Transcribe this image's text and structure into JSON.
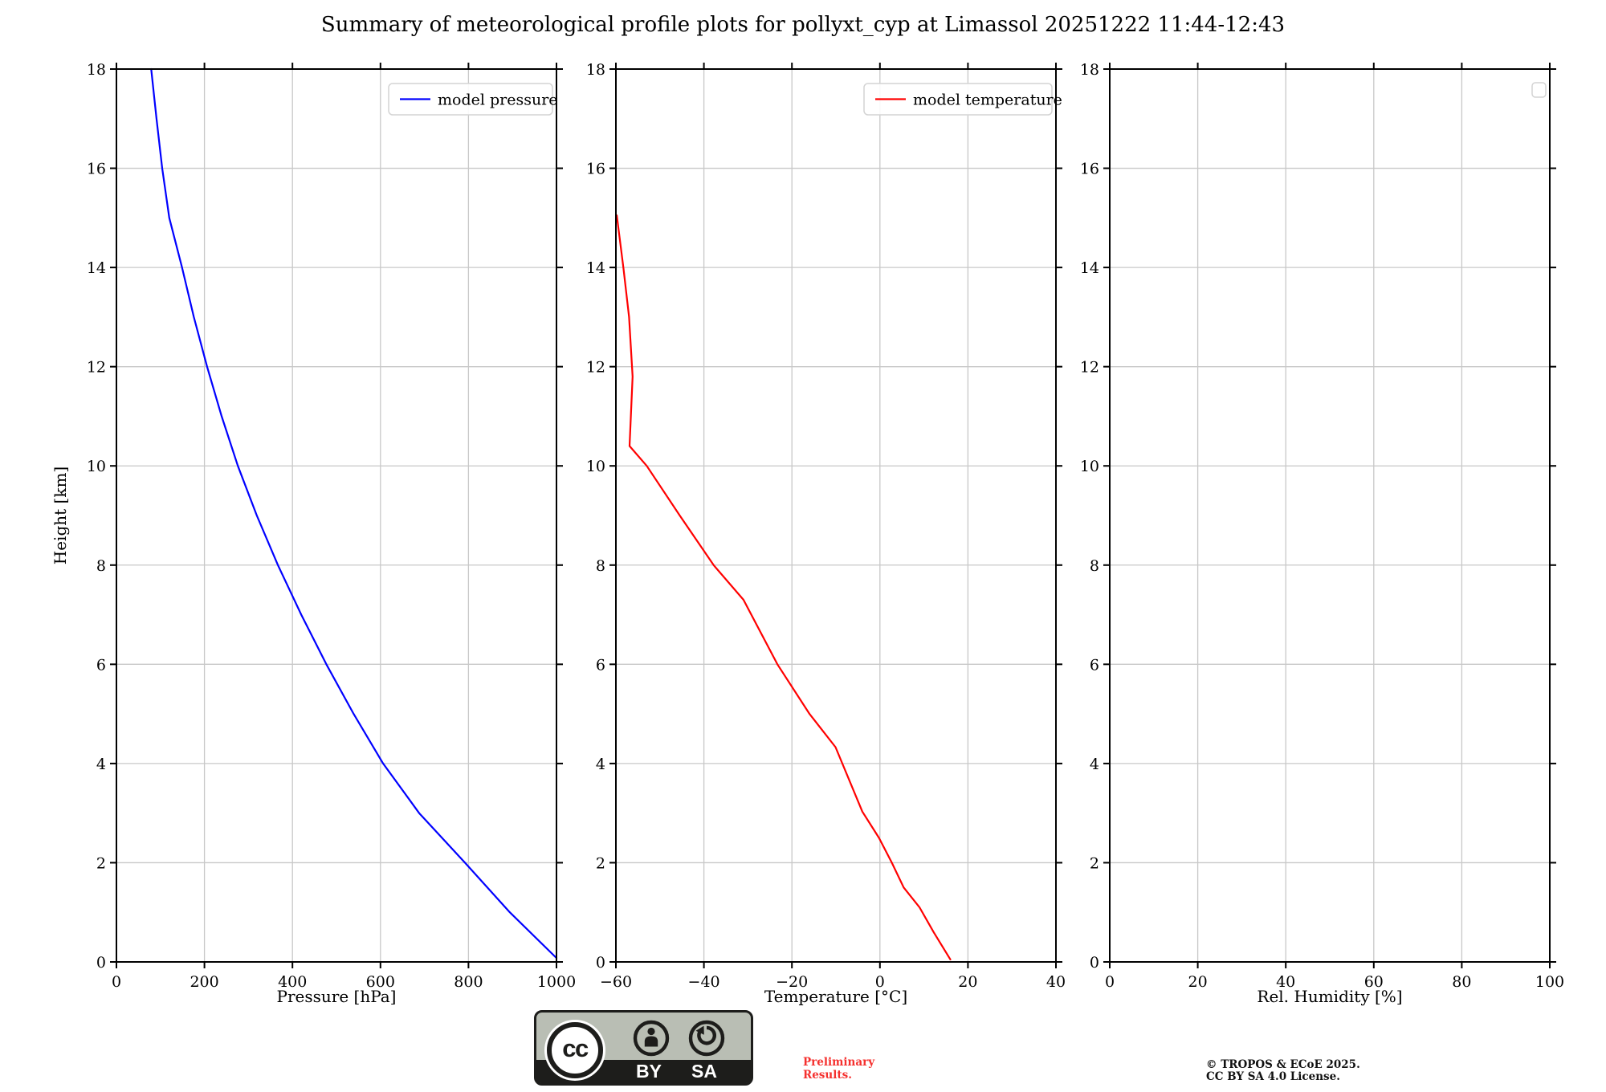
{
  "title": "Summary of meteorological profile plots for pollyxt_cyp at Limassol 20251222 11:44-12:43",
  "colors": {
    "pressure_line": "#0000ff",
    "temperature_line": "#ff0000",
    "grid": "#c8c8c8",
    "axis": "#000000",
    "legend_border": "#d4d4d4",
    "preliminary_red": "#f5302e",
    "badge_gray": "#b9beb4",
    "badge_dark": "#1d1d1b"
  },
  "chart_data": [
    {
      "name": "pressure",
      "type": "line",
      "xlabel": "Pressure [hPa]",
      "ylabel": "Height [km]",
      "xlim": [
        0,
        1000
      ],
      "ylim": [
        0,
        18
      ],
      "xticks": [
        0,
        200,
        400,
        600,
        800,
        1000
      ],
      "yticks": [
        0,
        2,
        4,
        6,
        8,
        10,
        12,
        14,
        16,
        18
      ],
      "grid": true,
      "legend": {
        "position": "upper right",
        "labels": [
          "model pressure"
        ],
        "empty_box": false
      },
      "series": [
        {
          "name": "model pressure",
          "color": "#0000ff",
          "x": [
            79,
            91,
            104,
            120,
            149,
            176,
            206,
            239,
            276,
            319,
            367,
            420,
            477,
            539,
            606,
            688,
            792,
            894,
            1000
          ],
          "y": [
            18,
            17,
            16,
            15,
            14,
            13,
            12,
            11,
            10,
            9,
            8,
            7,
            6,
            5,
            4,
            3,
            2,
            1,
            0.08
          ]
        }
      ]
    },
    {
      "name": "temperature",
      "type": "line",
      "xlabel": "Temperature [°C]",
      "ylabel": "",
      "xlim": [
        -60,
        40
      ],
      "ylim": [
        0,
        18
      ],
      "xticks": [
        -60,
        -40,
        -20,
        0,
        20,
        40
      ],
      "yticks": [
        0,
        2,
        4,
        6,
        8,
        10,
        12,
        14,
        16,
        18
      ],
      "grid": true,
      "legend": {
        "position": "upper right",
        "labels": [
          "model temperature"
        ],
        "empty_box": false
      },
      "series": [
        {
          "name": "model temperature",
          "color": "#ff0000",
          "x": [
            -59.8,
            -58.3,
            -57.0,
            -56.2,
            -56.9,
            -53.0,
            -45.5,
            -37.8,
            -31.0,
            -23.3,
            -16.0,
            -10.1,
            -4.0,
            -0.2,
            2.7,
            5.4,
            9.0,
            12.2,
            16.0
          ],
          "y": [
            15.05,
            14,
            13,
            11.8,
            10.4,
            10,
            9,
            8,
            7.3,
            6,
            5,
            4.33,
            3.03,
            2.5,
            2,
            1.5,
            1.1,
            0.6,
            0.05
          ]
        }
      ]
    },
    {
      "name": "humidity",
      "type": "line",
      "xlabel": "Rel. Humidity [%]",
      "ylabel": "",
      "xlim": [
        0,
        100
      ],
      "ylim": [
        0,
        18
      ],
      "xticks": [
        0,
        20,
        40,
        60,
        80,
        100
      ],
      "yticks": [
        0,
        2,
        4,
        6,
        8,
        10,
        12,
        14,
        16,
        18
      ],
      "grid": true,
      "legend": {
        "position": "upper right",
        "labels": [],
        "empty_box": true
      },
      "series": []
    }
  ],
  "footer": {
    "badge": {
      "cc_label": "cc",
      "by_label": "BY",
      "sa_label": "SA"
    },
    "preliminary": {
      "line1": "Preliminary",
      "line2": "Results."
    },
    "copyright": {
      "line1": "© TROPOS & ECoE 2025.",
      "line2": "CC BY SA 4.0 License."
    }
  }
}
